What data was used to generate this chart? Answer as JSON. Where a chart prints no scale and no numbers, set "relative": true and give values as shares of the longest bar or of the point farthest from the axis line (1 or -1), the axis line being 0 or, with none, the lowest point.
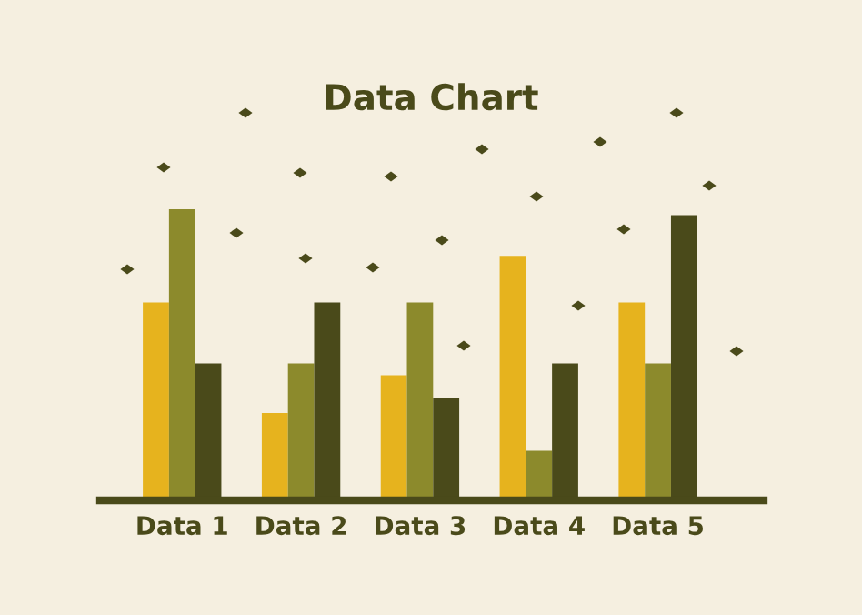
{
  "chart_data": {
    "type": "bar",
    "title": "Data Chart",
    "relative": true,
    "categories": [
      "Data 1",
      "Data 2",
      "Data 3",
      "Data 4",
      "Data 5"
    ],
    "series": [
      {
        "color": "#e6b31e",
        "values": [
          0.68,
          0.3,
          0.43,
          0.84,
          0.68
        ]
      },
      {
        "color": "#8c8a2c",
        "values": [
          1,
          0.47,
          0.68,
          0.17,
          0.47
        ]
      },
      {
        "color": "#4a4a1a",
        "values": [
          0.47,
          0.68,
          0.35,
          0.47,
          0.98
        ]
      }
    ],
    "grid": false
  }
}
